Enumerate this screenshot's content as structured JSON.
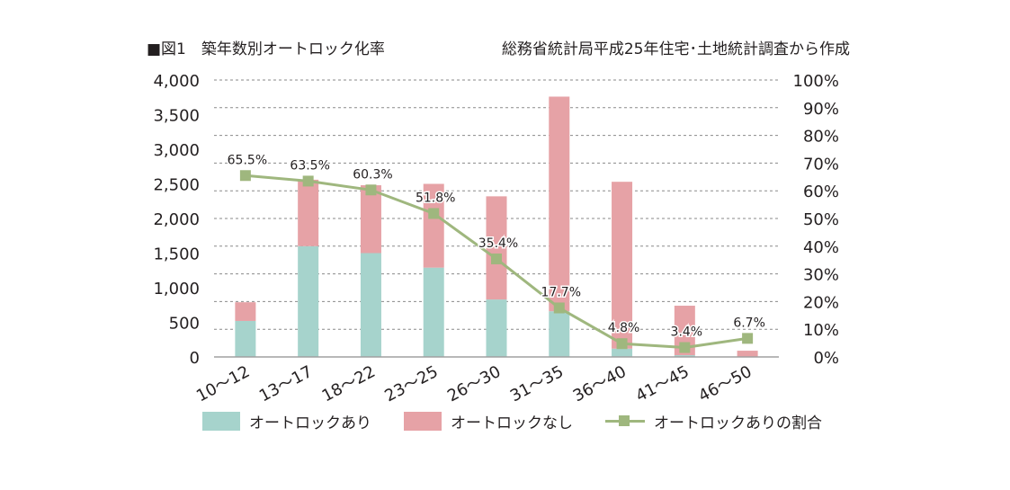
{
  "header": {
    "title": "■図1　築年数別オートロック化率",
    "source": "総務省統計局平成25年住宅･土地統計調査から作成"
  },
  "colors": {
    "with_autolock": "#a6d3cc",
    "without_autolock": "#e6a2a6",
    "ratio_line": "#9fb77e",
    "grid": "#8a8a8a",
    "axis": "#a0a0a0",
    "text": "#231f20"
  },
  "legend": [
    {
      "key": "with",
      "label": "オートロックあり"
    },
    {
      "key": "without",
      "label": "オートロックなし"
    },
    {
      "key": "ratio",
      "label": "オートロックありの割合"
    }
  ],
  "chart_data": {
    "type": "bar",
    "stacked": true,
    "title": "築年数別オートロック化率",
    "xlabel": "",
    "ylabel": "",
    "categories": [
      "10〜12",
      "13〜17",
      "18〜22",
      "23〜25",
      "26〜30",
      "31〜35",
      "36〜40",
      "41〜45",
      "46〜50"
    ],
    "series": [
      {
        "name": "オートロックあり",
        "type": "bar",
        "axis": "left",
        "values": [
          520,
          1600,
          1500,
          1290,
          830,
          660,
          120,
          25,
          6
        ]
      },
      {
        "name": "オートロックなし",
        "type": "bar",
        "axis": "left",
        "values": [
          270,
          960,
          980,
          1210,
          1490,
          3100,
          2410,
          715,
          84
        ]
      },
      {
        "name": "オートロックありの割合",
        "type": "line",
        "axis": "right",
        "values": [
          65.5,
          63.5,
          60.3,
          51.8,
          35.4,
          17.7,
          4.8,
          3.4,
          6.7
        ],
        "labels": [
          "65.5%",
          "63.5%",
          "60.3%",
          "51.8%",
          "35.4%",
          "17.7%",
          "4.8%",
          "3.4%",
          "6.7%"
        ]
      }
    ],
    "ylim": [
      0,
      4000
    ],
    "yticks": [
      0,
      500,
      1000,
      1500,
      2000,
      2500,
      3000,
      3500,
      4000
    ],
    "ytick_labels": [
      "0",
      "500",
      "1,000",
      "1,500",
      "2,000",
      "2,500",
      "3,000",
      "3,500",
      "4,000"
    ],
    "y2lim": [
      0,
      100
    ],
    "y2ticks": [
      0,
      10,
      20,
      30,
      40,
      50,
      60,
      70,
      80,
      90,
      100
    ],
    "y2tick_labels": [
      "0%",
      "10%",
      "20%",
      "30%",
      "40%",
      "50%",
      "60%",
      "70%",
      "80%",
      "90%",
      "100%"
    ],
    "grid": true,
    "legend_position": "bottom"
  }
}
